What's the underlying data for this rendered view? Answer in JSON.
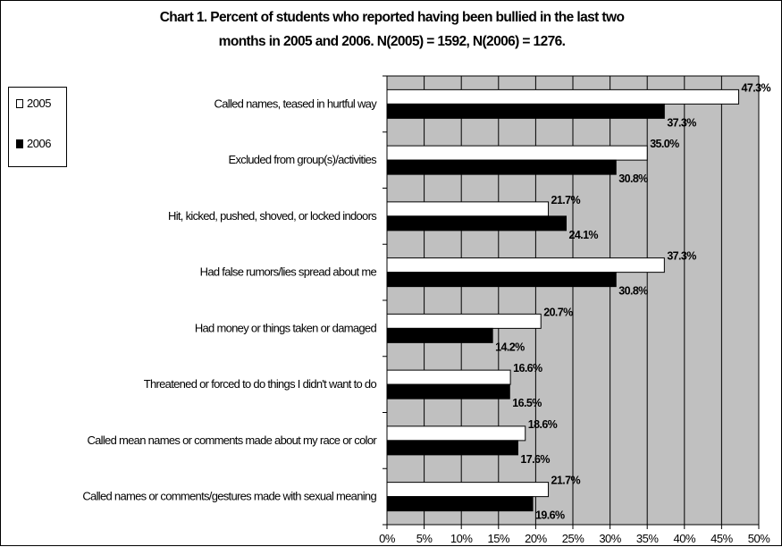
{
  "title_line1": "Chart 1. Percent of students who reported having been bullied in the last two",
  "title_line2": "months in 2005 and 2006.  N(2005) = 1592, N(2006) = 1276.",
  "colors": {
    "plot_bg": "#c0c0c0",
    "series_2005": "#ffffff",
    "series_2006": "#000000",
    "grid": "#000000"
  },
  "chart_data": {
    "type": "bar",
    "orientation": "horizontal",
    "title": "Chart 1. Percent of students who reported having been bullied in the last two months in 2005 and 2006.  N(2005) = 1592, N(2006) = 1276.",
    "categories": [
      "Called names, teased in hurtful way",
      "Excluded from group(s)/activities",
      "Hit, kicked, pushed, shoved, or locked indoors",
      "Had false rumors/lies spread about me",
      "Had money or things taken or damaged",
      "Threatened or forced to do things I didn't want to do",
      "Called mean names or comments made about my race or color",
      "Called  names or comments/gestures made with sexual meaning"
    ],
    "series": [
      {
        "name": "2005",
        "values": [
          47.3,
          35.0,
          21.7,
          37.3,
          20.7,
          16.6,
          18.6,
          21.7
        ],
        "labels": [
          "47.3%",
          "35.0%",
          "21.7%",
          "37.3%",
          "20.7%",
          "16.6%",
          "18.6%",
          "21.7%"
        ]
      },
      {
        "name": "2006",
        "values": [
          37.3,
          30.8,
          24.1,
          30.8,
          14.2,
          16.5,
          17.6,
          19.6
        ],
        "labels": [
          "37.3%",
          "30.8%",
          "24.1%",
          "30.8%",
          "14.2%",
          "16.5%",
          "17.6%",
          "19.6%"
        ]
      }
    ],
    "xlim": [
      0,
      50
    ],
    "x_ticks": [
      "0%",
      "5%",
      "10%",
      "15%",
      "20%",
      "25%",
      "30%",
      "35%",
      "40%",
      "45%",
      "50%"
    ],
    "grid": true,
    "legend_position": "left"
  }
}
